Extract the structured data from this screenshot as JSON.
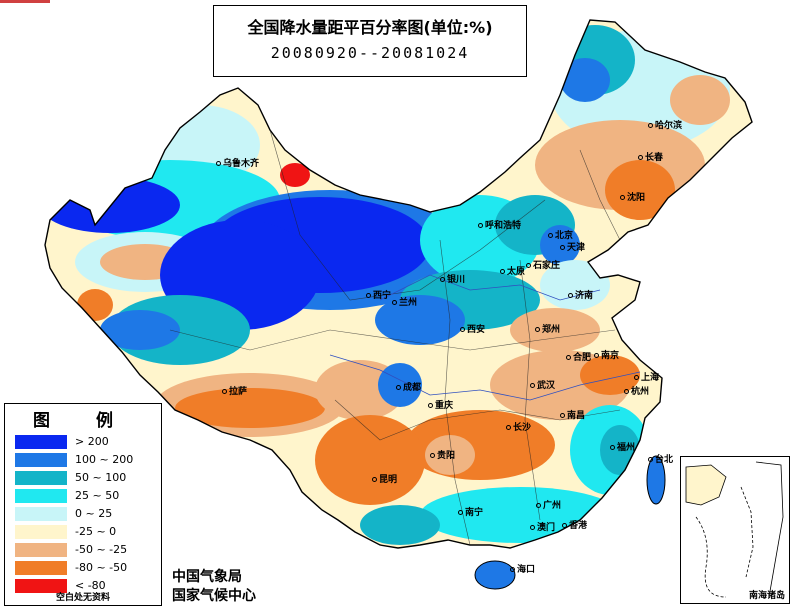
{
  "title": {
    "main": "全国降水量距平百分率图(单位:%)",
    "date_range": "20080920--20081024"
  },
  "legend": {
    "title": "图 例",
    "items": [
      {
        "label": "> 200",
        "color": "#0a28f0"
      },
      {
        "label": "100 ~ 200",
        "color": "#1e78e6"
      },
      {
        "label": "50 ~ 100",
        "color": "#14b4c8"
      },
      {
        "label": "25 ~ 50",
        "color": "#20e8f0"
      },
      {
        "label": "0 ~ 25",
        "color": "#c8f5f8"
      },
      {
        "label": "-25 ~ 0",
        "color": "#fff5cc"
      },
      {
        "label": "-50 ~ -25",
        "color": "#f0b482"
      },
      {
        "label": "-80 ~ -50",
        "color": "#f07d28"
      },
      {
        "label": "< -80",
        "color": "#f01414"
      }
    ],
    "note": "空白处无资料"
  },
  "agency": {
    "line1": "中国气象局",
    "line2": "国家气候中心"
  },
  "inset_label": "南海诸岛",
  "cities": [
    {
      "name": "乌鲁木齐"
    },
    {
      "name": "哈尔滨"
    },
    {
      "name": "长春"
    },
    {
      "name": "沈阳"
    },
    {
      "name": "呼和浩特"
    },
    {
      "name": "北京"
    },
    {
      "name": "天津"
    },
    {
      "name": "石家庄"
    },
    {
      "name": "太原"
    },
    {
      "name": "银川"
    },
    {
      "name": "兰州"
    },
    {
      "name": "西宁"
    },
    {
      "name": "济南"
    },
    {
      "name": "郑州"
    },
    {
      "name": "西安"
    },
    {
      "name": "合肥"
    },
    {
      "name": "南京"
    },
    {
      "name": "上海"
    },
    {
      "name": "杭州"
    },
    {
      "name": "武汉"
    },
    {
      "name": "成都"
    },
    {
      "name": "重庆"
    },
    {
      "name": "拉萨"
    },
    {
      "name": "长沙"
    },
    {
      "name": "南昌"
    },
    {
      "name": "福州"
    },
    {
      "name": "贵阳"
    },
    {
      "name": "昆明"
    },
    {
      "name": "南宁"
    },
    {
      "name": "广州"
    },
    {
      "name": "香港"
    },
    {
      "name": "澳门"
    },
    {
      "name": "台北"
    },
    {
      "name": "海口"
    }
  ]
}
